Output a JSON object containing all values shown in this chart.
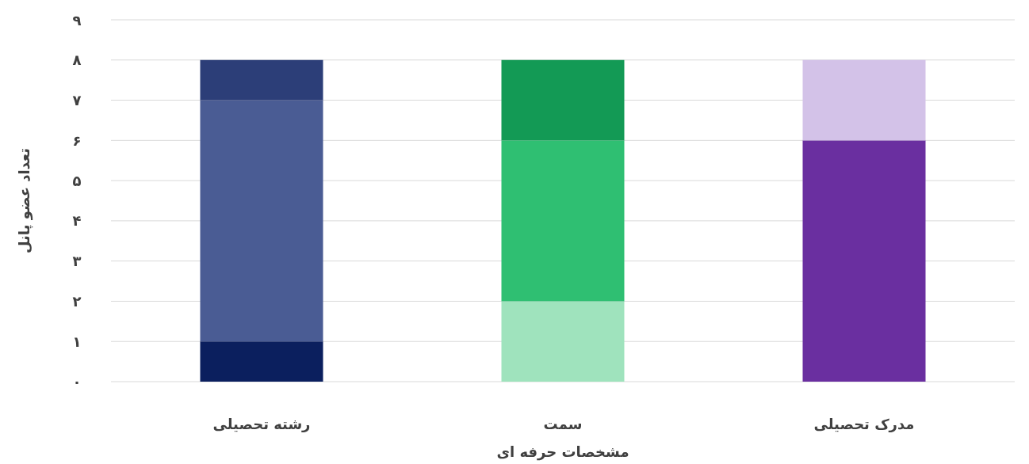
{
  "chart_data": {
    "type": "bar",
    "stacked": true,
    "xlabel": "مشخصات حرفه ای",
    "ylabel": "تعداد عضو پانل",
    "categories": [
      "رشته تحصیلی",
      "سمت",
      "مدرک تحصیلی"
    ],
    "series": [
      {
        "colors": [
          "#0b1f5e",
          "#9fe3bd",
          "#6a2fa0"
        ],
        "values": [
          1,
          2,
          6
        ]
      },
      {
        "colors": [
          "#4a5c94",
          "#2fbf72",
          "#d3c2e8"
        ],
        "values": [
          6,
          4,
          2
        ]
      },
      {
        "colors": [
          "#2c3e78",
          "#139a55",
          null
        ],
        "values": [
          1,
          2,
          null
        ]
      }
    ],
    "ylim": [
      0,
      9
    ],
    "yticks": [
      {
        "value": 0,
        "label": "۰"
      },
      {
        "value": 1,
        "label": "۱"
      },
      {
        "value": 2,
        "label": "۲"
      },
      {
        "value": 3,
        "label": "۳"
      },
      {
        "value": 4,
        "label": "۴"
      },
      {
        "value": 5,
        "label": "۵"
      },
      {
        "value": 6,
        "label": "۶"
      },
      {
        "value": 7,
        "label": "۷"
      },
      {
        "value": 8,
        "label": "۸"
      },
      {
        "value": 9,
        "label": "۹"
      }
    ],
    "grid": "y"
  }
}
